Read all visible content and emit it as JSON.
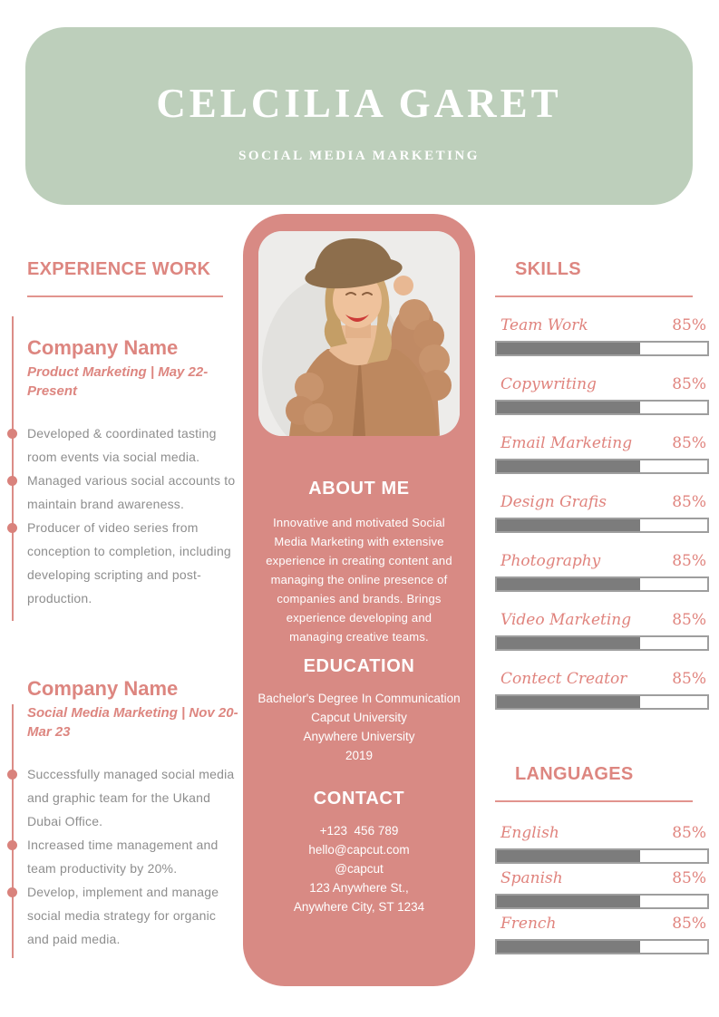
{
  "header": {
    "name": "CELCILIA GARET",
    "role": "SOCIAL MEDIA MARKETING"
  },
  "experience": {
    "heading": "EXPERIENCE WORK",
    "jobs": [
      {
        "company": "Company Name",
        "meta": "Product Marketing | May 22-Present",
        "bullets": [
          "Developed & coordinated tasting room events via social media.",
          "Managed various social accounts to maintain brand awareness.",
          "Producer of video series from conception to completion, including developing scripting and post-production."
        ]
      },
      {
        "company": "Company Name",
        "meta": "Social Media Marketing | Nov 20-Mar 23",
        "bullets": [
          "Successfully managed social media and graphic team for the Ukand Dubai Office.",
          "Increased time management and team productivity by 20%.",
          "Develop, implement and manage social media strategy for organic and paid media."
        ]
      }
    ]
  },
  "profile": {
    "about": {
      "heading": "ABOUT ME",
      "text": "Innovative and motivated Social Media Marketing with extensive experience in creating content and managing the online presence of companies and brands. Brings experience developing and managing creative teams."
    },
    "education": {
      "heading": "EDUCATION",
      "lines": [
        "Bachelor's Degree In Communication",
        "Capcut University",
        "Anywhere University",
        "2019"
      ]
    },
    "contact": {
      "heading": "CONTACT",
      "lines": [
        "+123  456 789",
        "hello@capcut.com",
        "@capcut",
        "123 Anywhere St.,",
        "Anywhere City, ST 1234"
      ]
    }
  },
  "skills": {
    "heading": "SKILLS",
    "items": [
      {
        "label": "Team Work",
        "percent": "85%",
        "bar_fill": 68
      },
      {
        "label": "Copywriting",
        "percent": "85%",
        "bar_fill": 68
      },
      {
        "label": "Email Marketing",
        "percent": "85%",
        "bar_fill": 68
      },
      {
        "label": "Design Grafis",
        "percent": "85%",
        "bar_fill": 68
      },
      {
        "label": "Photography",
        "percent": "85%",
        "bar_fill": 68
      },
      {
        "label": "Video Marketing",
        "percent": "85%",
        "bar_fill": 68
      },
      {
        "label": "Contect Creator",
        "percent": "85%",
        "bar_fill": 68
      }
    ]
  },
  "languages": {
    "heading": "LANGUAGES",
    "items": [
      {
        "label": "English",
        "percent": "85%",
        "bar_fill": 68
      },
      {
        "label": "Spanish",
        "percent": "85%",
        "bar_fill": 68
      },
      {
        "label": "French",
        "percent": "85%",
        "bar_fill": 68
      }
    ]
  },
  "colors": {
    "header_green": "#bdcfbb",
    "panel_pink": "#d88a84",
    "accent_pink": "#dd8680",
    "timeline_pink": "#d9827c",
    "body_grey": "#8e8e8e",
    "bar_fill_grey": "#7c7c7c",
    "bar_border_grey": "#9e9e9e"
  }
}
